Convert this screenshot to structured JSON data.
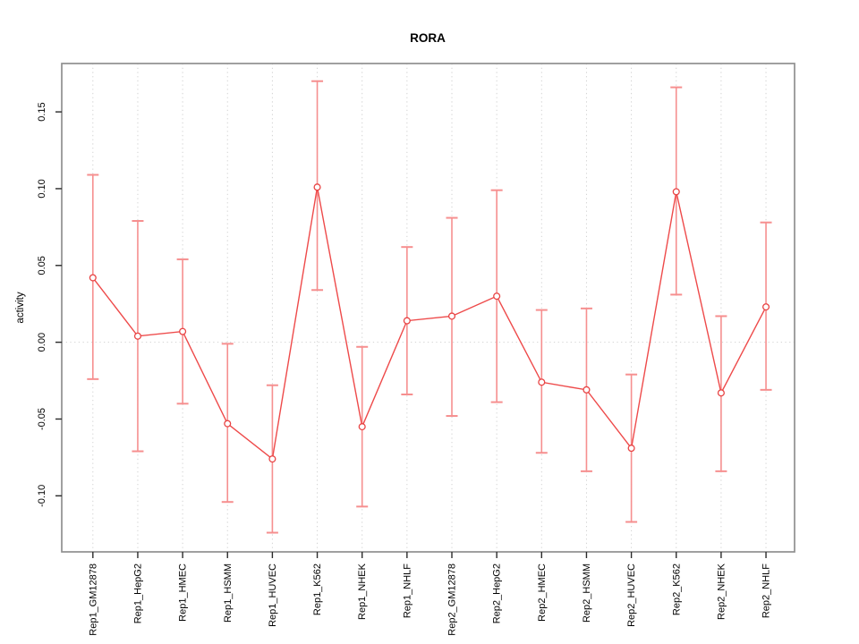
{
  "figure": {
    "title": "RORA"
  },
  "chart_data": {
    "type": "line",
    "subtype": "points-with-error-bars",
    "title": "RORA",
    "xlabel": "",
    "ylabel": "activity",
    "ylim": [
      -0.1365,
      0.1815
    ],
    "ytick_values": [
      0.15,
      0.1,
      0.05,
      0.0,
      -0.05,
      -0.1
    ],
    "ytick_labels": [
      "0.15",
      "0.10",
      "0.05",
      "0.00",
      "-0.05",
      "-0.10"
    ],
    "grid": {
      "vertical_dotted_per_category": true,
      "horizontal_dotted_at_zero": true
    },
    "legend": "none",
    "categories": [
      "Rep1_GM12878",
      "Rep1_HepG2",
      "Rep1_HMEC",
      "Rep1_HSMM",
      "Rep1_HUVEC",
      "Rep1_K562",
      "Rep1_NHEK",
      "Rep1_NHLF",
      "Rep2_GM12878",
      "Rep2_HepG2",
      "Rep2_HMEC",
      "Rep2_HSMM",
      "Rep2_HUVEC",
      "Rep2_K562",
      "Rep2_NHEK",
      "Rep2_NHLF"
    ],
    "series": [
      {
        "name": "activity",
        "values": [
          0.042,
          0.004,
          0.007,
          -0.053,
          -0.076,
          0.101,
          -0.055,
          0.014,
          0.017,
          0.03,
          -0.026,
          -0.031,
          -0.069,
          0.098,
          -0.033,
          0.023
        ],
        "upper": [
          0.109,
          0.079,
          0.054,
          -0.001,
          -0.028,
          0.17,
          -0.003,
          0.062,
          0.081,
          0.099,
          0.021,
          0.022,
          -0.021,
          0.166,
          0.017,
          0.078
        ],
        "lower": [
          -0.024,
          -0.071,
          -0.04,
          -0.104,
          -0.124,
          0.034,
          -0.107,
          -0.034,
          -0.048,
          -0.039,
          -0.072,
          -0.084,
          -0.117,
          0.031,
          -0.084,
          -0.031
        ]
      }
    ],
    "colors": {
      "line": "#ee4a4a",
      "point_stroke": "#e84444",
      "point_fill": "#ffffff",
      "error_bar": "#f68f8f",
      "grid": "#d2d2d2",
      "box": "#909090",
      "tick": "#2a2a2a",
      "text": "#000000",
      "background": "#ffffff"
    }
  }
}
